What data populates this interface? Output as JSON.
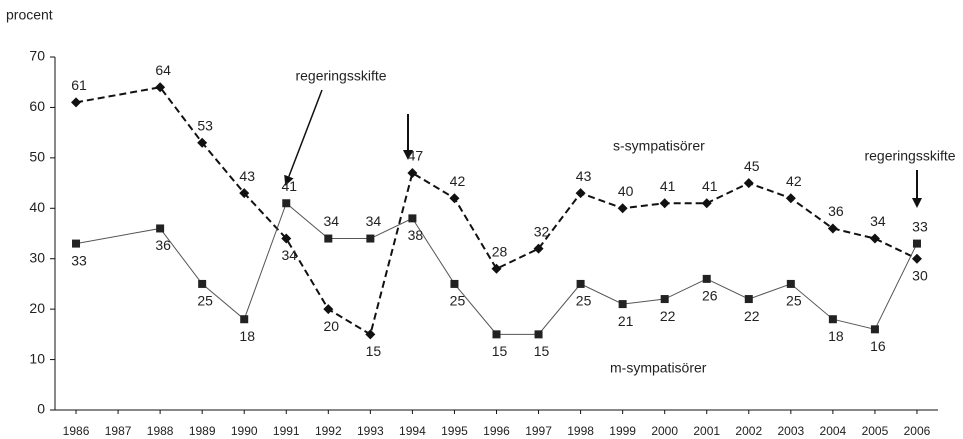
{
  "chart_data": {
    "type": "line",
    "y_label": "procent",
    "x": [
      1986,
      1988,
      1989,
      1990,
      1991,
      1992,
      1993,
      1994,
      1995,
      1996,
      1997,
      1998,
      1999,
      2000,
      2001,
      2002,
      2003,
      2004,
      2005,
      2006
    ],
    "xlim": [
      1985.5,
      2006.5
    ],
    "xticks": [
      1986,
      1987,
      1988,
      1989,
      1990,
      1991,
      1992,
      1993,
      1994,
      1995,
      1996,
      1997,
      1998,
      1999,
      2000,
      2001,
      2002,
      2003,
      2004,
      2005,
      2006
    ],
    "ylim": [
      0,
      70
    ],
    "yticks": [
      0,
      10,
      20,
      30,
      40,
      50,
      60,
      70
    ],
    "grid": false,
    "series": [
      {
        "name": "s-sympatisörer",
        "color": "#111111",
        "values": [
          61,
          64,
          53,
          43,
          34,
          20,
          15,
          47,
          42,
          28,
          32,
          43,
          40,
          41,
          41,
          45,
          42,
          36,
          34,
          30
        ]
      },
      {
        "name": "m-sympatisörer",
        "color": "#555555",
        "values": [
          33,
          36,
          25,
          18,
          41,
          34,
          34,
          38,
          25,
          15,
          15,
          25,
          21,
          22,
          26,
          22,
          25,
          18,
          16,
          33
        ]
      }
    ],
    "annotations": [
      {
        "text": "regeringsskifte"
      },
      {
        "text": "regeringsskifte"
      }
    ]
  }
}
